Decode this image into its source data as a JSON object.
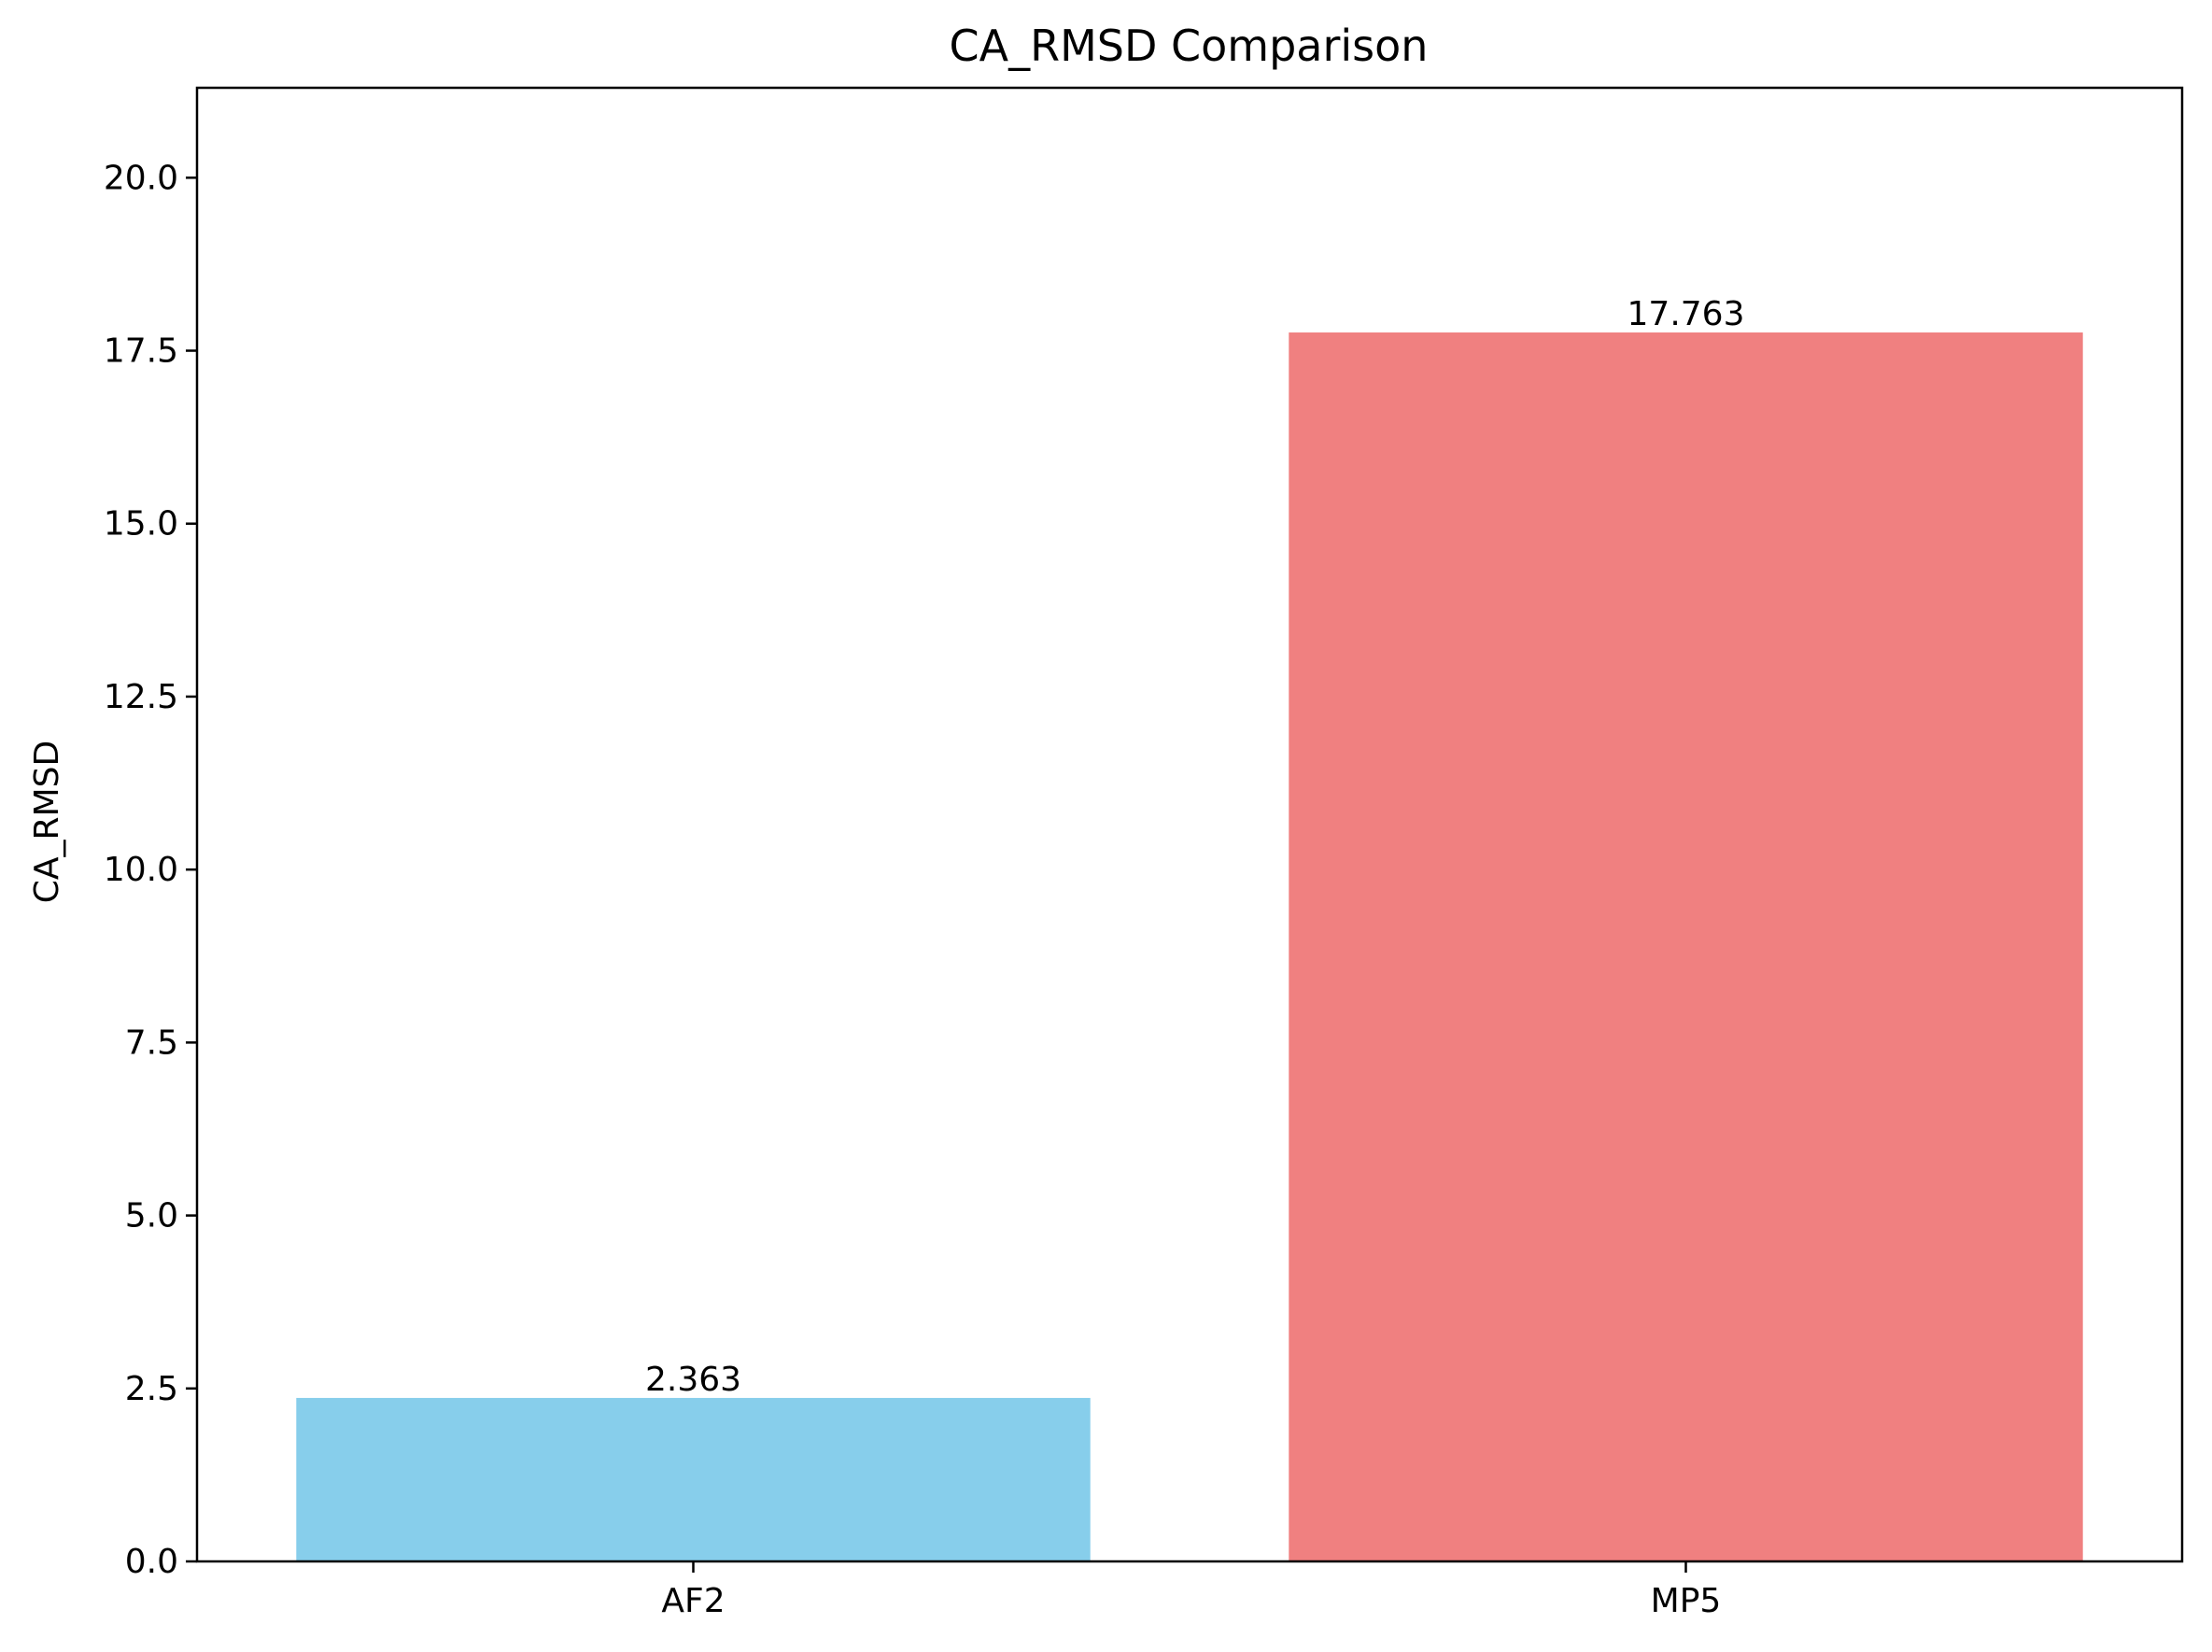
{
  "chart_data": {
    "type": "bar",
    "title": "CA_RMSD Comparison",
    "xlabel": "",
    "ylabel": "CA_RMSD",
    "categories": [
      "AF2",
      "MP5"
    ],
    "values": [
      2.363,
      17.763
    ],
    "value_labels": [
      "2.363",
      "17.763"
    ],
    "colors": [
      "#87CEEB",
      "#F08080"
    ],
    "ylim": [
      0,
      21.3
    ],
    "yticks": [
      0.0,
      2.5,
      5.0,
      7.5,
      10.0,
      12.5,
      15.0,
      17.5,
      20.0
    ],
    "ytick_labels": [
      "0.0",
      "2.5",
      "5.0",
      "7.5",
      "10.0",
      "12.5",
      "15.0",
      "17.5",
      "20.0"
    ],
    "grid": false,
    "legend": "none"
  }
}
